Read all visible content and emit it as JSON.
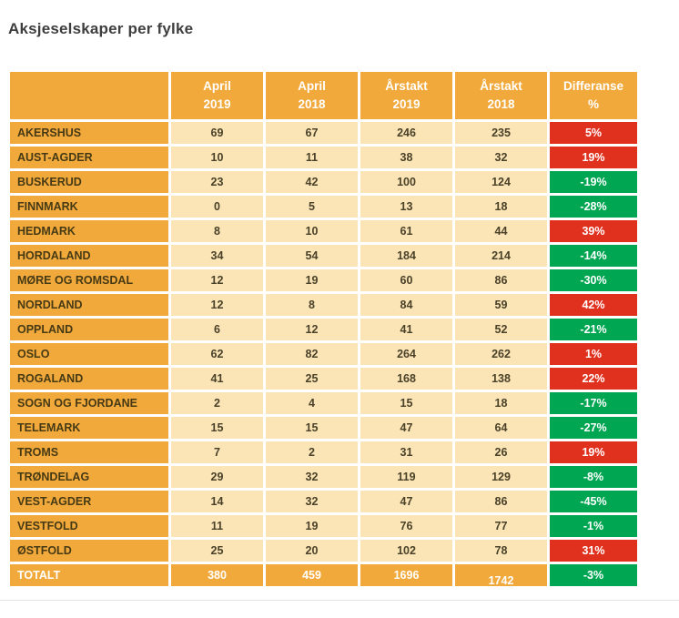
{
  "page": {
    "title": "Aksjeselskaper per fylke"
  },
  "chart_data": {
    "type": "table",
    "title": "Aksjeselskaper per fylke",
    "columns": [
      [
        "",
        ""
      ],
      [
        "April",
        "2019"
      ],
      [
        "April",
        "2018"
      ],
      [
        "Årstakt",
        "2019"
      ],
      [
        "Årstakt",
        "2018"
      ],
      [
        "Differanse",
        "%"
      ]
    ],
    "rows": [
      [
        "AKERSHUS",
        "69",
        "67",
        "246",
        "235",
        "5%"
      ],
      [
        "AUST-AGDER",
        "10",
        "11",
        "38",
        "32",
        "19%"
      ],
      [
        "BUSKERUD",
        "23",
        "42",
        "100",
        "124",
        "-19%"
      ],
      [
        "FINNMARK",
        "0",
        "5",
        "13",
        "18",
        "-28%"
      ],
      [
        "HEDMARK",
        "8",
        "10",
        "61",
        "44",
        "39%"
      ],
      [
        "HORDALAND",
        "34",
        "54",
        "184",
        "214",
        "-14%"
      ],
      [
        "MØRE OG ROMSDAL",
        "12",
        "19",
        "60",
        "86",
        "-30%"
      ],
      [
        "NORDLAND",
        "12",
        "8",
        "84",
        "59",
        "42%"
      ],
      [
        "OPPLAND",
        "6",
        "12",
        "41",
        "52",
        "-21%"
      ],
      [
        "OSLO",
        "62",
        "82",
        "264",
        "262",
        "1%"
      ],
      [
        "ROGALAND",
        "41",
        "25",
        "168",
        "138",
        "22%"
      ],
      [
        "SOGN OG FJORDANE",
        "2",
        "4",
        "15",
        "18",
        "-17%"
      ],
      [
        "TELEMARK",
        "15",
        "15",
        "47",
        "64",
        "-27%"
      ],
      [
        "TROMS",
        "7",
        "2",
        "31",
        "26",
        "19%"
      ],
      [
        "TRØNDELAG",
        "29",
        "32",
        "119",
        "129",
        "-8%"
      ],
      [
        "VEST-AGDER",
        "14",
        "32",
        "47",
        "86",
        "-45%"
      ],
      [
        "VESTFOLD",
        "11",
        "19",
        "76",
        "77",
        "-1%"
      ],
      [
        "ØSTFOLD",
        "25",
        "20",
        "102",
        "78",
        "31%"
      ],
      [
        "TOTALT",
        "380",
        "459",
        "1696",
        "1742",
        "-3%"
      ]
    ],
    "diff_color_rule": "negative values green, positive values red",
    "legend_position": "none",
    "grid": "white gridlines between cells"
  },
  "colors": {
    "header_bg": "#F2A93B",
    "cell_bg": "#FBE5B6",
    "positive_diff_red": "#E0301E",
    "negative_diff_green": "#00A651",
    "title_text": "#3E3E3E",
    "fylke_text": "#463A15",
    "value_text": "#4A4129"
  }
}
